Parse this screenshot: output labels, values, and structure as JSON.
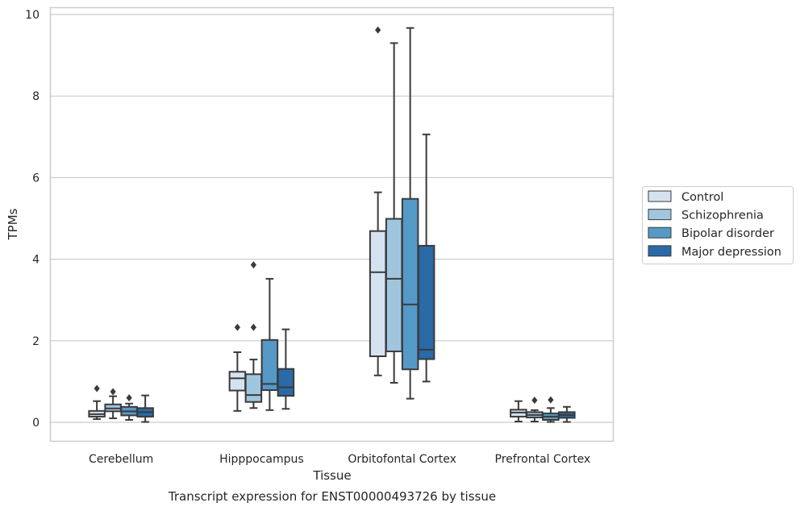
{
  "chart_data": {
    "type": "box",
    "title": "Transcript expression for ENST00000493726 by tissue",
    "xlabel": "Tissue",
    "ylabel": "TPMs",
    "ylim": [
      -0.45,
      10.15
    ],
    "yticks": [
      0,
      2,
      4,
      6,
      8,
      10
    ],
    "grid": true,
    "legend_position": "right",
    "categories": [
      "Cerebellum",
      "Hipppocampus",
      "Orbitofontal Cortex",
      "Prefrontal Cortex"
    ],
    "series": [
      {
        "name": "Control",
        "color": "#d5e3f1",
        "boxes": [
          {
            "min": 0.08,
            "q1": 0.14,
            "median": 0.2,
            "q3": 0.28,
            "max": 0.52,
            "outliers": [
              0.83
            ]
          },
          {
            "min": 0.28,
            "q1": 0.78,
            "median": 1.08,
            "q3": 1.24,
            "max": 1.72,
            "outliers": [
              2.33
            ]
          },
          {
            "min": 1.15,
            "q1": 1.62,
            "median": 3.68,
            "q3": 4.69,
            "max": 5.64,
            "outliers": [
              9.62
            ]
          },
          {
            "min": 0.02,
            "q1": 0.14,
            "median": 0.24,
            "q3": 0.31,
            "max": 0.52,
            "outliers": []
          }
        ]
      },
      {
        "name": "Schizophrenia",
        "color": "#a0c6df",
        "boxes": [
          {
            "min": 0.1,
            "q1": 0.27,
            "median": 0.34,
            "q3": 0.44,
            "max": 0.64,
            "outliers": [
              0.75
            ]
          },
          {
            "min": 0.35,
            "q1": 0.5,
            "median": 0.67,
            "q3": 1.18,
            "max": 1.54,
            "outliers": [
              2.33,
              3.86
            ]
          },
          {
            "min": 0.97,
            "q1": 1.74,
            "median": 3.52,
            "q3": 4.99,
            "max": 9.3,
            "outliers": []
          },
          {
            "min": 0.02,
            "q1": 0.12,
            "median": 0.18,
            "q3": 0.25,
            "max": 0.3,
            "outliers": [
              0.54
            ]
          }
        ]
      },
      {
        "name": "Bipolar disorder",
        "color": "#5599c7",
        "boxes": [
          {
            "min": 0.06,
            "q1": 0.17,
            "median": 0.27,
            "q3": 0.38,
            "max": 0.46,
            "outliers": [
              0.6
            ]
          },
          {
            "min": 0.3,
            "q1": 0.79,
            "median": 0.94,
            "q3": 2.02,
            "max": 3.52,
            "outliers": []
          },
          {
            "min": 0.58,
            "q1": 1.3,
            "median": 2.89,
            "q3": 5.48,
            "max": 9.67,
            "outliers": []
          },
          {
            "min": 0.01,
            "q1": 0.06,
            "median": 0.14,
            "q3": 0.22,
            "max": 0.35,
            "outliers": [
              0.55
            ]
          }
        ]
      },
      {
        "name": "Major depression",
        "color": "#2a6aa7",
        "boxes": [
          {
            "min": 0.01,
            "q1": 0.14,
            "median": 0.25,
            "q3": 0.35,
            "max": 0.66,
            "outliers": []
          },
          {
            "min": 0.33,
            "q1": 0.65,
            "median": 0.86,
            "q3": 1.31,
            "max": 2.28,
            "outliers": []
          },
          {
            "min": 1.0,
            "q1": 1.55,
            "median": 1.78,
            "q3": 4.33,
            "max": 7.06,
            "outliers": []
          },
          {
            "min": 0.01,
            "q1": 0.11,
            "median": 0.18,
            "q3": 0.25,
            "max": 0.38,
            "outliers": []
          }
        ]
      }
    ]
  }
}
